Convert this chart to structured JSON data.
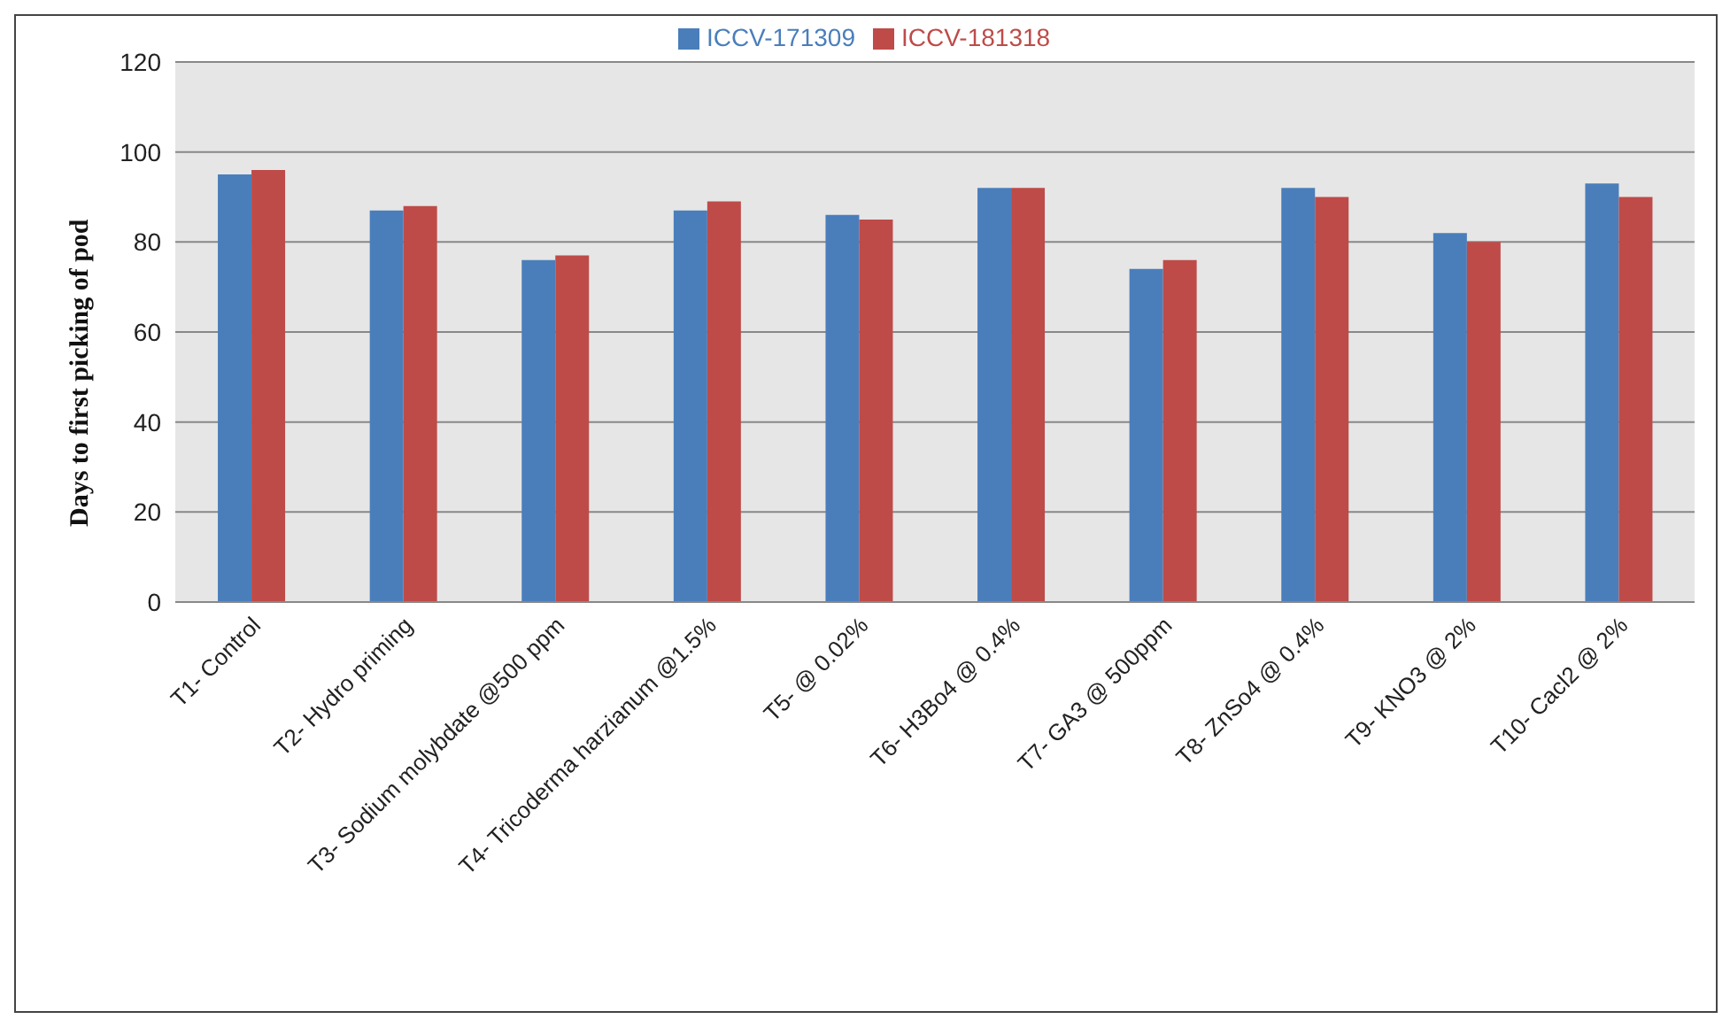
{
  "chart_data": {
    "type": "bar",
    "ylabel": "Days to first  picking of pod",
    "categories": [
      "T1- Control",
      "T2- Hydro priming",
      "T3- Sodium molybdate @500 ppm",
      "T4- Tricoderma harzianum @1.5%",
      "T5- @ 0.02%",
      "T6- H3Bo4 @ 0.4%",
      "T7- GA3 @ 500ppm",
      "T8- ZnSo4 @ 0.4%",
      "T9- KNO3 @ 2%",
      "T10- Cacl2 @ 2%"
    ],
    "series": [
      {
        "name": "ICCV-171309",
        "color": "#4a7ebb",
        "values": [
          95,
          87,
          76,
          87,
          86,
          92,
          74,
          92,
          82,
          93
        ]
      },
      {
        "name": "ICCV-181318",
        "color": "#be4b48",
        "values": [
          96,
          88,
          77,
          89,
          85,
          92,
          76,
          90,
          80,
          90
        ]
      }
    ],
    "ylim": [
      0,
      120
    ],
    "yticks": [
      0,
      20,
      40,
      60,
      80,
      100,
      120
    ],
    "grid": "y",
    "legend": "top"
  }
}
